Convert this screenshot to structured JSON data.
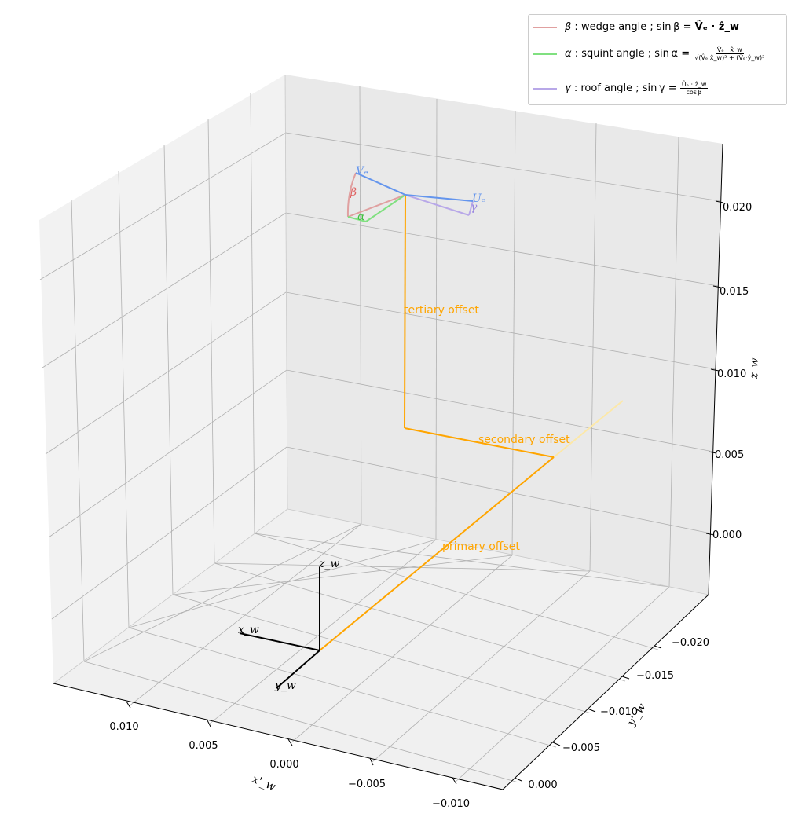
{
  "chart_data": {
    "type": "3d-line",
    "xlabel": "x'_w",
    "ylabel": "y'_w",
    "zlabel": "z_w",
    "x_ticks": [
      "0.010",
      "0.005",
      "0.000",
      "−0.005",
      "−0.010"
    ],
    "y_ticks": [
      "0.000",
      "−0.005",
      "−0.010",
      "−0.015",
      "−0.020"
    ],
    "z_ticks": [
      "0.000",
      "0.005",
      "0.010",
      "0.015",
      "0.020"
    ],
    "grid": true,
    "legend_position": "top-right",
    "legend": [
      {
        "symbol": "β",
        "text": " : wedge angle ; sin β = ",
        "formula": "V̂ₑ · ẑ_w",
        "color": "#e0a0a0"
      },
      {
        "symbol": "α",
        "text": " : squint angle ; sin α = ",
        "numerator": "V̂ₑ · x̂_w",
        "denominator": "√(V̂ₑ·x̂_w)² + (V̂ₑ·ŷ_w)²",
        "color": "#80e080"
      },
      {
        "symbol": "γ",
        "text": " : roof angle ; sin γ = ",
        "numerator": "Ûₑ · ẑ_w",
        "denominator": "cos β",
        "color": "#b8a8e8"
      }
    ],
    "frame_labels": {
      "x": "x_w",
      "y": "y_w",
      "z": "z_w"
    },
    "vector_labels": {
      "V": "Vₑ",
      "U": "Uₑ"
    },
    "angle_labels": {
      "beta": "β",
      "alpha": "α",
      "gamma": "γ"
    },
    "offset_labels": {
      "primary": "primary offset",
      "secondary": "secondary offset",
      "tertiary": "tertiary offset"
    },
    "colors": {
      "offset": "#ffa500",
      "offset_faint": "#fce8a8",
      "vector": "#6495ed",
      "beta": "#e0a0a0",
      "alpha": "#80e080",
      "gamma": "#b8a8e8",
      "frame": "#000000",
      "label_v": "#6495ed"
    }
  }
}
